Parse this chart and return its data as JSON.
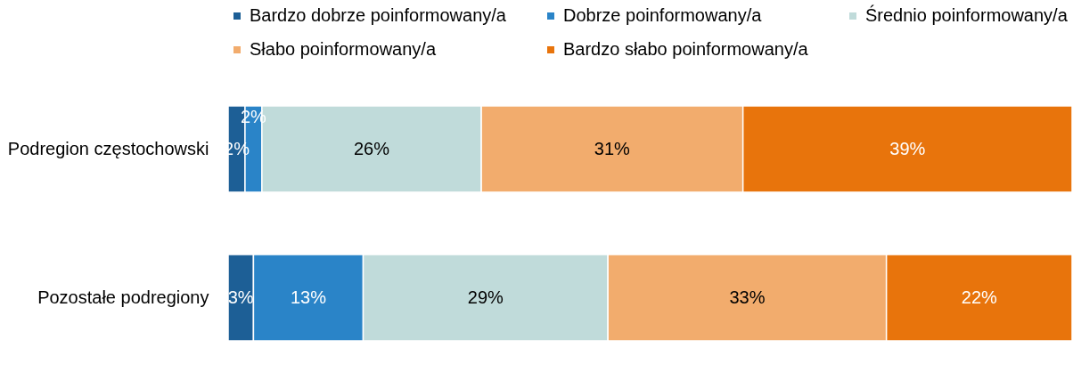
{
  "chart_data": {
    "type": "bar",
    "orientation": "horizontal",
    "stacked": true,
    "legend": "top",
    "categories": [
      "Podregion częstochowski",
      "Pozostałe podregiony"
    ],
    "series": [
      {
        "name": "Bardzo dobrze poinformowany/a",
        "color": "#1d5f96",
        "values": [
          2,
          3
        ],
        "value_labels": [
          "2%",
          "3%"
        ]
      },
      {
        "name": "Dobrze poinformowany/a",
        "color": "#2a84c8",
        "values": [
          2,
          13
        ],
        "value_labels": [
          "2%",
          "13%"
        ]
      },
      {
        "name": "Średnio poinformowany/a",
        "color": "#c0dbda",
        "values": [
          26,
          29
        ],
        "value_labels": [
          "26%",
          "29%"
        ]
      },
      {
        "name": "Słabo poinformowany/a",
        "color": "#f2ac6d",
        "values": [
          31,
          33
        ],
        "value_labels": [
          "31%",
          "33%"
        ]
      },
      {
        "name": "Bardzo słabo poinformowany/a",
        "color": "#e8740c",
        "values": [
          39,
          22
        ],
        "value_labels": [
          "39%",
          "22%"
        ]
      }
    ]
  }
}
